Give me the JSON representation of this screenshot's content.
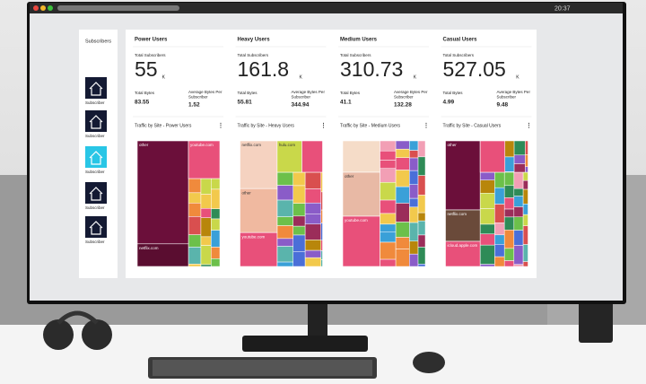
{
  "window": {
    "time": "20:37"
  },
  "sidebar": {
    "title": "Subscribers",
    "items": [
      "Subscriber",
      "Subscriber",
      "Subscriber",
      "Subscriber",
      "Subscriber"
    ]
  },
  "panels": [
    {
      "title": "Power Users",
      "subscribers_label": "Total Subscribers",
      "subscribers": "55",
      "unit": "K",
      "bytes_label": "Total Bytes",
      "bytes": "83.55",
      "avg_label": [
        "Average Bytes Per",
        "Subscriber"
      ],
      "avg": "1.52",
      "chart_title": "Traffic by Site - Power Users",
      "tiles": [
        "other",
        "youtube.com",
        "netflix.com"
      ]
    },
    {
      "title": "Heavy Users",
      "subscribers_label": "Total Subscribers",
      "subscribers": "161.8",
      "unit": "K",
      "bytes_label": "Total Bytes",
      "bytes": "55.81",
      "avg_label": [
        "Average Bytes Per",
        "Subscriber"
      ],
      "avg": "344.94",
      "chart_title": "Traffic by Site - Heavy Users",
      "tiles": [
        "netflix.com",
        "hulu.com",
        "other",
        "youtube.com"
      ]
    },
    {
      "title": "Medium Users",
      "subscribers_label": "Total Subscribers",
      "subscribers": "310.73",
      "unit": "K",
      "bytes_label": "Total Bytes",
      "bytes": "41.1",
      "avg_label": [
        "Average Bytes Per",
        "Subscriber"
      ],
      "avg": "132.28",
      "chart_title": "Traffic by Site - Medium Users",
      "tiles": [
        "other",
        "youtube.com"
      ]
    },
    {
      "title": "Casual Users",
      "subscribers_label": "Total Subscribers",
      "subscribers": "527.05",
      "unit": "K",
      "bytes_label": "Total Bytes",
      "bytes": "4.99",
      "avg_label": [
        "Average Bytes Per",
        "Subscriber"
      ],
      "avg": "9.48",
      "chart_title": "Traffic by Site - Casual Users",
      "tiles": [
        "other",
        "netflix.com",
        "icloud.apple.com"
      ]
    }
  ]
}
